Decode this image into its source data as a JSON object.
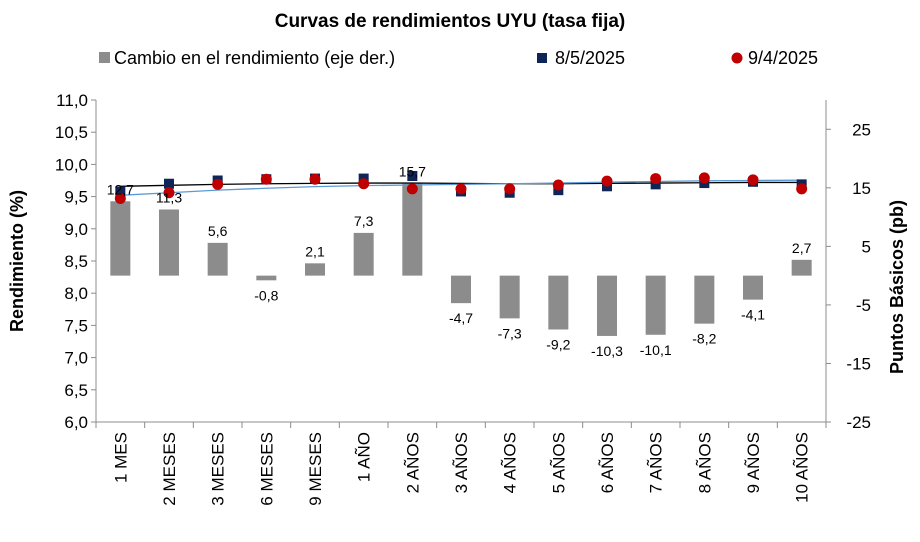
{
  "chart_data": {
    "type": "bar",
    "title": "Curvas de rendimientos UYU (tasa fija)",
    "categories": [
      "1 MES",
      "2 MESES",
      "3 MESES",
      "6 MESES",
      "9 MESES",
      "1 AÑO",
      "2 AÑOS",
      "3 AÑOS",
      "4 AÑOS",
      "5 AÑOS",
      "6 AÑOS",
      "7 AÑOS",
      "8 AÑOS",
      "9 AÑOS",
      "10 AÑOS"
    ],
    "ylabel": "Rendimiento (%)",
    "y2label": "Puntos Básicos (pb)",
    "ylim": [
      6.0,
      11.0
    ],
    "y2lim": [
      -25,
      30
    ],
    "yticks": [
      "6,0",
      "6,5",
      "7,0",
      "7,5",
      "8,0",
      "8,5",
      "9,0",
      "9,5",
      "10,0",
      "10,5",
      "11,0"
    ],
    "y2ticks": [
      "-25",
      "-15",
      "-5",
      "5",
      "15",
      "25"
    ],
    "series": [
      {
        "name": "Cambio en el rendimiento (eje der.)",
        "kind": "bar",
        "axis": "right",
        "color": "#8c8c8c",
        "values": [
          12.7,
          11.3,
          5.6,
          -0.8,
          2.1,
          7.3,
          15.7,
          -4.7,
          -7.3,
          -9.2,
          -10.3,
          -10.1,
          -8.2,
          -4.1,
          2.7
        ],
        "labels": [
          "12,7",
          "11,3",
          "5,6",
          "-0,8",
          "2,1",
          "7,3",
          "15,7",
          "-4,7",
          "-7,3",
          "-9,2",
          "-10,3",
          "-10,1",
          "-8,2",
          "-4,1",
          "2,7"
        ]
      },
      {
        "name": "8/5/2025",
        "kind": "marker-square",
        "axis": "left",
        "color": "#0f2557",
        "values": [
          9.58,
          9.7,
          9.75,
          9.77,
          9.78,
          9.78,
          9.82,
          9.58,
          9.56,
          9.6,
          9.66,
          9.69,
          9.71,
          9.73,
          9.69
        ]
      },
      {
        "name": "9/4/2025",
        "kind": "marker-circle",
        "axis": "left",
        "color": "#c00000",
        "values": [
          9.47,
          9.56,
          9.69,
          9.77,
          9.77,
          9.7,
          9.62,
          9.62,
          9.62,
          9.68,
          9.74,
          9.78,
          9.79,
          9.76,
          9.62
        ]
      }
    ],
    "trendlines": [
      {
        "name": "",
        "color": "#000000",
        "values": [
          9.66,
          9.675,
          9.69,
          9.7,
          9.705,
          9.71,
          9.71,
          9.705,
          9.7,
          9.7,
          9.705,
          9.71,
          9.715,
          9.72,
          9.72
        ]
      },
      {
        "name": "",
        "color": "#5b9bd5",
        "values": [
          9.52,
          9.56,
          9.6,
          9.63,
          9.655,
          9.67,
          9.68,
          9.69,
          9.7,
          9.71,
          9.725,
          9.735,
          9.745,
          9.75,
          9.755
        ]
      }
    ],
    "legend_position": "top",
    "grid": false
  }
}
